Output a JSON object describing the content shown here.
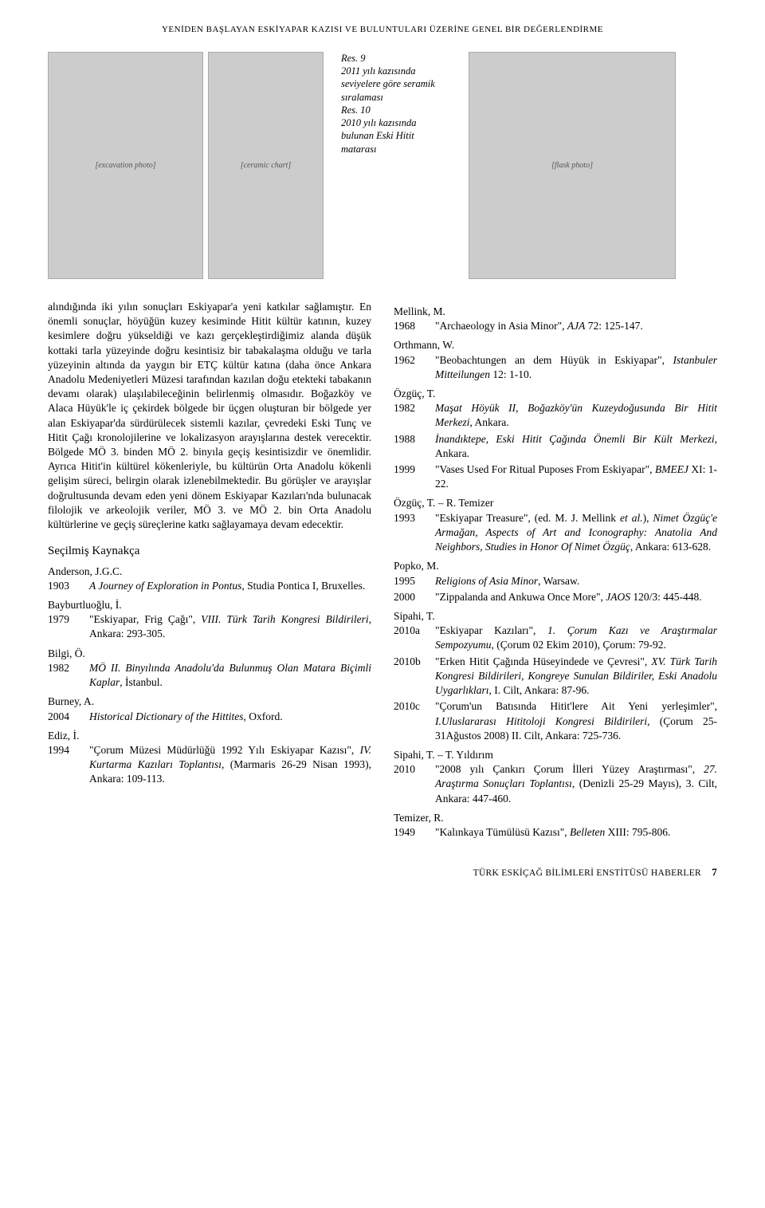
{
  "header": {
    "title": "YENİDEN BAŞLAYAN ESKİYAPAR KAZISI VE BULUNTULARI ÜZERİNE GENEL BİR DEĞERLENDİRME"
  },
  "figures": {
    "fig9": {
      "label": "Res. 9",
      "caption": "2011 yılı kazısında seviyelere göre seramik sıralaması",
      "placeholder_a": "[excavation photo]",
      "placeholder_b": "[ceramic chart]"
    },
    "fig10": {
      "label": "Res. 10",
      "caption": "2010 yılı kazısında bulunan Eski Hitit matarası",
      "placeholder": "[flask photo]"
    }
  },
  "body_left": {
    "para": "alındığında iki yılın sonuçları Eskiyapar'a yeni katkılar sağlamıştır. En önemli sonuçlar, höyüğün kuzey kesiminde Hitit kültür katının, kuzey kesimlere doğru yükseldiği ve kazı gerçekleştirdiğimiz alanda düşük kottaki tarla yüzeyinde doğru kesintisiz bir tabakalaşma olduğu ve tarla yüzeyinin altında da yaygın bir ETÇ kültür katına (daha önce Ankara Anadolu Medeniyetleri Müzesi tarafından kazılan doğu etekteki tabakanın devamı olarak) ulaşılabileceğinin belirlenmiş olmasıdır. Boğazköy ve Alaca Hüyük'le iç çekirdek bölgede bir üçgen oluşturan bir bölgede yer alan Eskiyapar'da sürdürülecek sistemli kazılar, çevredeki Eski Tunç ve Hitit Çağı kronolojilerine ve lokalizasyon arayışlarına destek verecektir. Bölgede MÖ 3. binden MÖ 2. binyıla geçiş kesintisizdir ve önemlidir. Ayrıca Hitit'in kültürel kökenleriyle, bu kültürün Orta Anadolu kökenli gelişim süreci, belirgin olarak izlenebilmektedir. Bu görüşler ve arayışlar doğrultusunda devam eden yeni dönem Eskiyapar Kazıları'nda bulunacak filolojik ve arkeolojik veriler, MÖ 3. ve MÖ 2. bin Orta Anadolu kültürlerine ve geçiş süreçlerine katkı sağlayamaya devam edecektir."
  },
  "bibliography_heading": "Seçilmiş Kaynakça",
  "bib_left": [
    {
      "author": "Anderson, J.G.C.",
      "year": "1903",
      "html": "<span class=\"ital\">A Journey of Exploration in Pontus</span>, Studia Pontica I, Bruxelles."
    },
    {
      "author": "Bayburtluoğlu, İ.",
      "year": "1979",
      "html": "\"Eskiyapar, Frig Çağı\", <span class=\"ital\">VIII. Türk Tarih Kongresi Bildirileri</span>, Ankara: 293-305."
    },
    {
      "author": "Bilgi, Ö.",
      "year": "1982",
      "html": "<span class=\"ital\">MÖ II. Binyılında Anadolu'da Bulunmuş Olan Matara Biçimli Kaplar</span>, İstanbul."
    },
    {
      "author": "Burney, A.",
      "year": "2004",
      "html": "<span class=\"ital\">Historical Dictionary of the Hittites</span>, Oxford."
    },
    {
      "author": "Ediz, İ.",
      "year": "1994",
      "html": "\"Çorum Müzesi Müdürlüğü 1992 Yılı Eskiyapar Kazısı\", <span class=\"ital\">IV. Kurtarma Kazıları Toplantısı</span>, (Marmaris 26-29 Nisan 1993), Ankara: 109-113."
    }
  ],
  "bib_right": [
    {
      "author": "Mellink, M.",
      "year": "1968",
      "html": "\"Archaeology in Asia Minor\", <span class=\"ital\">AJA</span> 72: 125-147."
    },
    {
      "author": "Orthmann, W.",
      "year": "1962",
      "html": "\"Beobachtungen an dem Hüyük in Eskiyapar\", <span class=\"ital\">Istanbuler Mitteilungen</span> 12: 1-10."
    },
    {
      "author": "Özgüç, T.",
      "year": "1982",
      "html": "<span class=\"ital\">Maşat Höyük II, Boğazköy'ün Kuzeydoğusunda Bir Hitit Merkezi</span>, Ankara."
    },
    {
      "author": "",
      "year": "1988",
      "html": "<span class=\"ital\">İnandıktepe, Eski Hitit Çağında Önemli Bir Kült Merkezi</span>, Ankara."
    },
    {
      "author": "",
      "year": "1999",
      "html": "\"Vases Used For Ritual Puposes From Eskiyapar\", <span class=\"ital\">BMEEJ</span> XI: 1-22."
    },
    {
      "author": "Özgüç, T. – R. Temizer",
      "year": "1993",
      "html": "\"Eskiyapar Treasure\", (ed. M. J. Mellink <span class=\"ital\">et al.</span>), <span class=\"ital\">Nimet Özgüç'e Armağan, Aspects of Art and Iconography: Anatolia And Neighbors, Studies in Honor Of Nimet Özgüç</span>, Ankara: 613-628."
    },
    {
      "author": "Popko, M.",
      "year": "1995",
      "html": "<span class=\"ital\">Religions of Asia Minor</span>, Warsaw."
    },
    {
      "author": "",
      "year": "2000",
      "html": "\"Zippalanda and Ankuwa Once More\", <span class=\"ital\">JAOS</span> 120/3: 445-448."
    },
    {
      "author": "Sipahi, T.",
      "year": "2010a",
      "html": "\"Eskiyapar Kazıları\", <span class=\"ital\">1. Çorum Kazı ve Araştırmalar Sempozyumu</span>, (Çorum 02 Ekim 2010), Çorum: 79-92."
    },
    {
      "author": "",
      "year": "2010b",
      "html": "\"Erken Hitit Çağında Hüseyindede ve Çevresi\", <span class=\"ital\">XV. Türk Tarih Kongresi Bildirileri, Kongreye Sunulan Bildiriler, Eski Anadolu Uygarlıkları</span>, I. Cilt, Ankara: 87-96."
    },
    {
      "author": "",
      "year": "2010c",
      "html": "\"Çorum'un Batısında Hitit'lere Ait Yeni yerleşimler\", <span class=\"ital\">I.Uluslararası Hititoloji Kongresi Bildirileri</span>, (Çorum 25-31Ağustos 2008) II. Cilt, Ankara: 725-736."
    },
    {
      "author": "Sipahi, T. – T. Yıldırım",
      "year": "2010",
      "html": "\"2008 yılı Çankırı Çorum İlleri Yüzey Araştırması\", <span class=\"ital\">27. Araştırma Sonuçları Toplantısı</span>, (Denizli 25-29 Mayıs), 3. Cilt, Ankara: 447-460."
    },
    {
      "author": "Temizer, R.",
      "year": "1949",
      "html": "\"Kalınkaya Tümülüsü Kazısı\", <span class=\"ital\">Belleten</span> XIII: 795-806."
    }
  ],
  "footer": {
    "text": "TÜRK ESKİÇAĞ BİLİMLERİ ENSTİTÜSÜ HABERLER",
    "page": "7"
  }
}
